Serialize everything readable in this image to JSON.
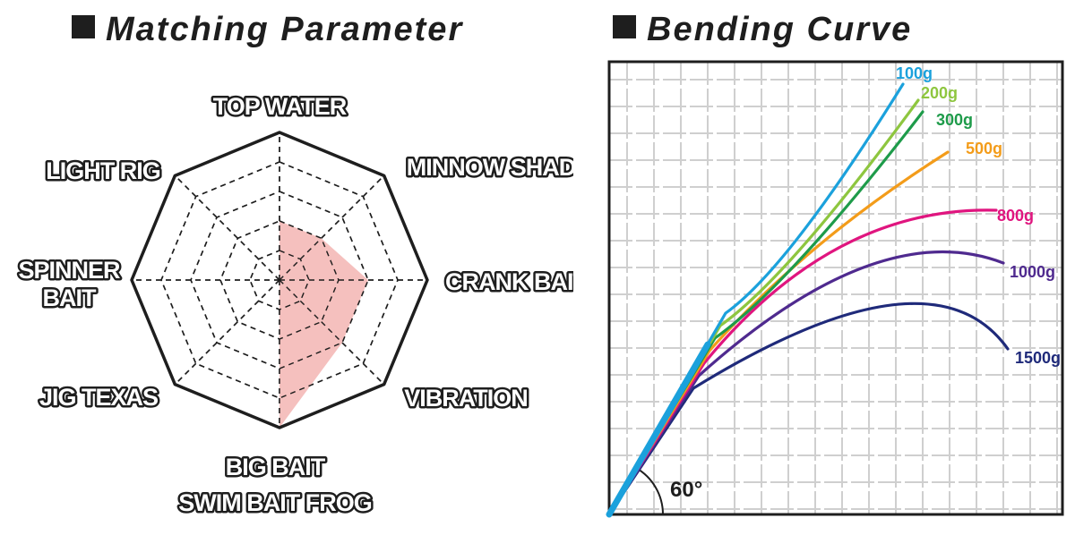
{
  "radar": {
    "title": "Matching Parameter",
    "chart_data": {
      "type": "radar",
      "axes": [
        "TOP WATER",
        "MINNOW SHAD",
        "CRANK BAIT",
        "VIBRATION",
        "BIG BAIT\nSWIM BAIT FROG",
        "JIG TEXAS",
        "SPINNER\nBAIT",
        "LIGHT RIG"
      ],
      "levels": 5,
      "max": 5,
      "values": [
        2,
        2,
        3,
        3,
        5,
        0,
        3,
        0
      ],
      "fill_color": "#f4b9b7",
      "grid": "dashed"
    }
  },
  "bending": {
    "title": "Bending Curve",
    "angle_label": "60°",
    "grid_color": "#cfcfcf",
    "chart_data": {
      "type": "line",
      "description_units": "bending profile under load",
      "series": [
        {
          "name": "100g",
          "color": "#1ba1dc",
          "tip": [
            0.68,
            0.97
          ],
          "bend": 0.02
        },
        {
          "name": "200g",
          "color": "#8ec63f",
          "tip": [
            0.68,
            0.93
          ],
          "bend": 0.05
        },
        {
          "name": "300g",
          "color": "#1e9b4a",
          "tip": [
            0.69,
            0.88
          ],
          "bend": 0.08
        },
        {
          "name": "500g",
          "color": "#f39c1a",
          "tip": [
            0.74,
            0.8
          ],
          "bend": 0.12
        },
        {
          "name": "800g",
          "color": "#e0157f",
          "tip": [
            0.81,
            0.67
          ],
          "bend": 0.18
        },
        {
          "name": "1000g",
          "color": "#4f2a8f",
          "tip": [
            0.85,
            0.56
          ],
          "bend": 0.22
        },
        {
          "name": "1500g",
          "color": "#1f2a7a",
          "tip": [
            0.88,
            0.4
          ],
          "bend": 0.26
        }
      ]
    }
  }
}
